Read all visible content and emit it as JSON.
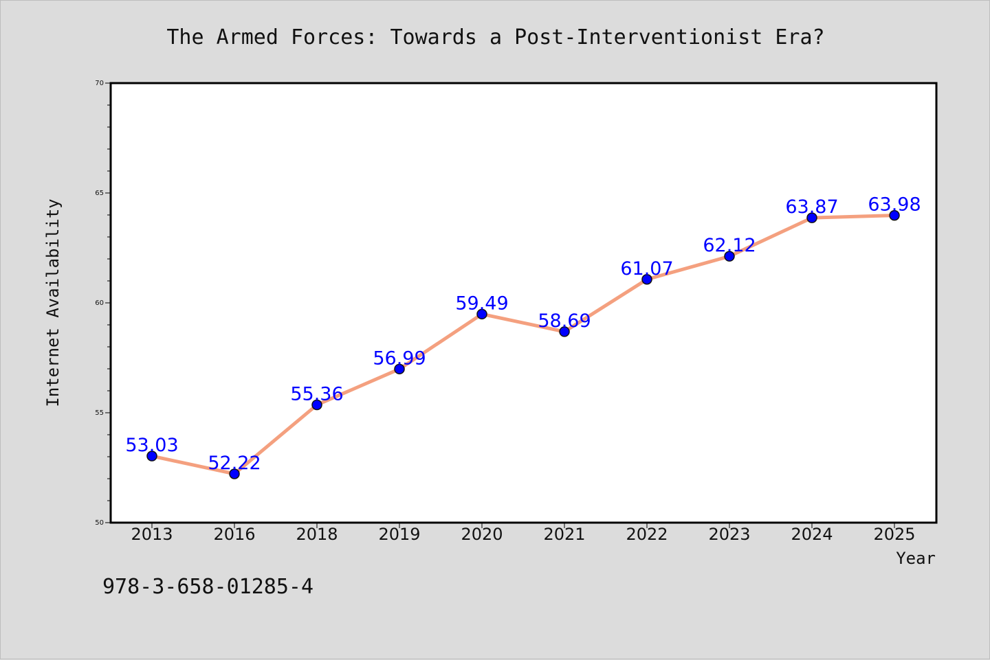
{
  "chart_data": {
    "type": "line",
    "title": "The Armed Forces: Towards a Post-Interventionist Era?",
    "xlabel": "Year",
    "ylabel": "Internet Availability",
    "categories": [
      "2013",
      "2016",
      "2018",
      "2019",
      "2020",
      "2021",
      "2022",
      "2023",
      "2024",
      "2025"
    ],
    "values": [
      53.03,
      52.22,
      55.36,
      56.99,
      59.49,
      58.69,
      61.07,
      62.12,
      63.87,
      63.98
    ],
    "data_labels": [
      "53.03",
      "52.22",
      "55.36",
      "56.99",
      "59.49",
      "58.69",
      "61.07",
      "62.12",
      "63.87",
      "63.98"
    ],
    "ylim": [
      50,
      70
    ],
    "y_ticks": [
      50,
      55,
      60,
      65,
      70
    ],
    "y_tick_labels": [
      "50",
      "55",
      "60",
      "65",
      "70"
    ],
    "grid": false,
    "legend": "none",
    "line_color": "#f4a07f",
    "marker_color": "#0000ff",
    "label_color": "#0000ff"
  },
  "footer": {
    "text": "978-3-658-01285-4"
  }
}
